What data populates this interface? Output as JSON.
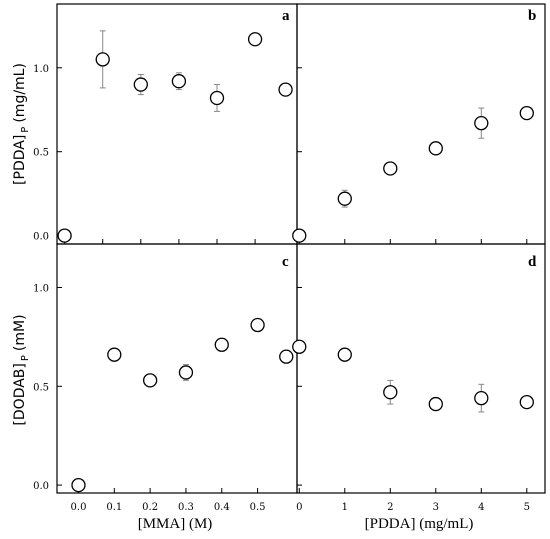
{
  "chart_data": [
    {
      "type": "scatter",
      "panel": "a",
      "ylabel": "[PDDA] P (mg/mL)",
      "ylabel_main": "[PDDA]",
      "ylabel_sub": "P",
      "ylabel_unit": "(mg/mL)",
      "xlim": [
        -0.02,
        0.61
      ],
      "ylim": [
        -0.05,
        1.38
      ],
      "xticks": [
        0.0,
        0.1,
        0.2,
        0.3,
        0.4,
        0.5
      ],
      "yticks": [
        0.0,
        0.5,
        1.0
      ],
      "yticklabels": [
        "0.0",
        "0.5",
        "1.0"
      ],
      "points": [
        {
          "x": 0.0,
          "y": 0.0,
          "err": 0.0
        },
        {
          "x": 0.1,
          "y": 1.05,
          "err": 0.17
        },
        {
          "x": 0.2,
          "y": 0.9,
          "err": 0.06
        },
        {
          "x": 0.3,
          "y": 0.92,
          "err": 0.05
        },
        {
          "x": 0.4,
          "y": 0.82,
          "err": 0.08
        },
        {
          "x": 0.5,
          "y": 1.17,
          "err": 0.02
        },
        {
          "x": 0.58,
          "y": 0.87,
          "err": 0.01
        }
      ]
    },
    {
      "type": "scatter",
      "panel": "b",
      "xlim": [
        -0.05,
        5.4
      ],
      "ylim": [
        -0.05,
        1.38
      ],
      "xticks": [
        0,
        1,
        2,
        3,
        4,
        5
      ],
      "yticks": [
        0.0,
        0.5,
        1.0
      ],
      "points": [
        {
          "x": 0,
          "y": 0.0,
          "err": 0.0
        },
        {
          "x": 1,
          "y": 0.22,
          "err": 0.05
        },
        {
          "x": 2,
          "y": 0.4,
          "err": 0.02
        },
        {
          "x": 3,
          "y": 0.52,
          "err": 0.02
        },
        {
          "x": 4,
          "y": 0.67,
          "err": 0.09
        },
        {
          "x": 5,
          "y": 0.73,
          "err": 0.03
        }
      ]
    },
    {
      "type": "scatter",
      "panel": "c",
      "xlabel": "[MMA] (M)",
      "ylabel": "[DODAB] P (mM)",
      "ylabel_main": "[DODAB]",
      "ylabel_sub": "P",
      "ylabel_unit": "(mM)",
      "xlim": [
        -0.06,
        0.61
      ],
      "ylim": [
        -0.04,
        1.22
      ],
      "xticks": [
        0.0,
        0.1,
        0.2,
        0.3,
        0.4,
        0.5
      ],
      "xticklabels": [
        "0.0",
        "0.1",
        "0.2",
        "0.3",
        "0.4",
        "0.5"
      ],
      "yticks": [
        0.0,
        0.5,
        1.0
      ],
      "yticklabels": [
        "0.0",
        "0.5",
        "1.0"
      ],
      "points": [
        {
          "x": 0.0,
          "y": 0.0,
          "err": 0.0
        },
        {
          "x": 0.1,
          "y": 0.66,
          "err": 0.01
        },
        {
          "x": 0.2,
          "y": 0.53,
          "err": 0.02
        },
        {
          "x": 0.3,
          "y": 0.57,
          "err": 0.04
        },
        {
          "x": 0.4,
          "y": 0.71,
          "err": 0.02
        },
        {
          "x": 0.5,
          "y": 0.81,
          "err": 0.02
        },
        {
          "x": 0.58,
          "y": 0.65,
          "err": 0.01
        }
      ]
    },
    {
      "type": "scatter",
      "panel": "d",
      "xlabel": "[PDDA] (mg/mL)",
      "xlim": [
        -0.05,
        5.4
      ],
      "ylim": [
        -0.04,
        1.22
      ],
      "xticks": [
        0,
        1,
        2,
        3,
        4,
        5
      ],
      "xticklabels": [
        "0",
        "1",
        "2",
        "3",
        "4",
        "5"
      ],
      "yticks": [
        0.0,
        0.5,
        1.0
      ],
      "points": [
        {
          "x": 0,
          "y": 0.7,
          "err": 0.0
        },
        {
          "x": 1,
          "y": 0.66,
          "err": 0.02
        },
        {
          "x": 2,
          "y": 0.47,
          "err": 0.06
        },
        {
          "x": 3,
          "y": 0.41,
          "err": 0.01
        },
        {
          "x": 4,
          "y": 0.44,
          "err": 0.07
        },
        {
          "x": 5,
          "y": 0.42,
          "err": 0.01
        }
      ]
    }
  ]
}
